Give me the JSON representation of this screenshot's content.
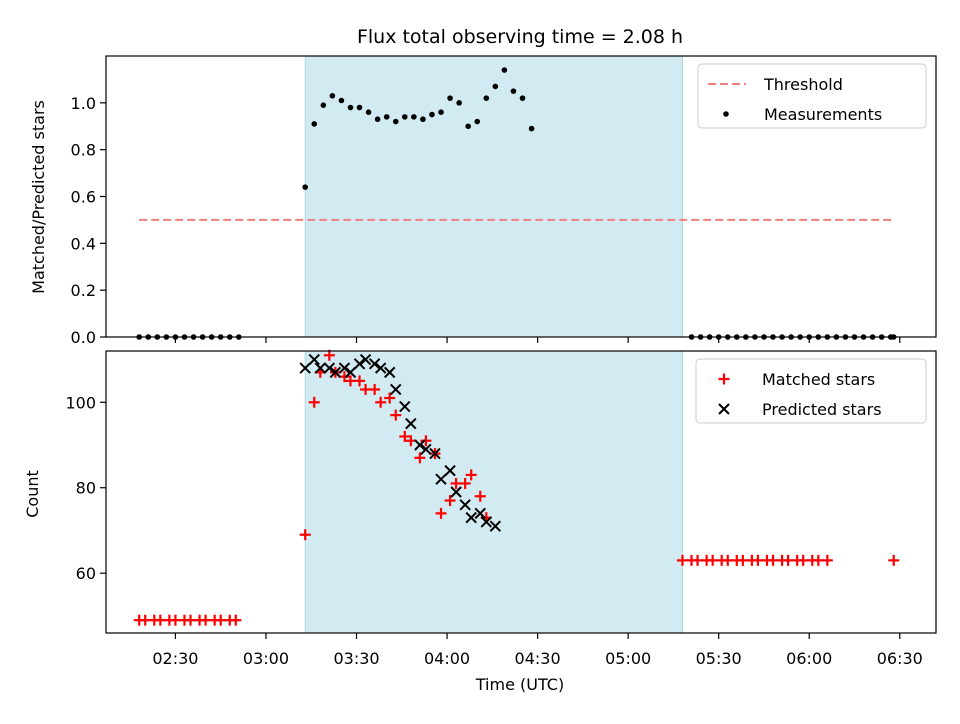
{
  "chart_data": {
    "type": "scatter",
    "title": "Flux total observing time = 2.08 h",
    "xlabel": "Time (UTC)",
    "x_ticks": [
      "02:30",
      "03:00",
      "03:30",
      "04:00",
      "04:30",
      "05:00",
      "05:30",
      "06:00",
      "06:30"
    ],
    "shaded_interval": [
      "03:13",
      "05:18"
    ],
    "shade_color": "#add8e6",
    "panels": [
      {
        "ylabel": "Matched/Predicted stars",
        "ylim": [
          0,
          1.2
        ],
        "y_ticks": [
          "0.0",
          "0.2",
          "0.4",
          "0.6",
          "0.8",
          "1.0"
        ],
        "legend": {
          "placement": "top-right",
          "entries": [
            "Threshold",
            "Measurements"
          ]
        },
        "threshold": {
          "name": "Threshold",
          "value": 0.5,
          "x_range": [
            "02:18",
            "06:28"
          ],
          "color": "#f08080"
        },
        "series": [
          {
            "name": "Measurements",
            "marker": "dot",
            "color": "#000000",
            "points": [
              [
                "02:18",
                0
              ],
              [
                "02:21",
                0
              ],
              [
                "02:24",
                0
              ],
              [
                "02:27",
                0
              ],
              [
                "02:30",
                0
              ],
              [
                "02:33",
                0
              ],
              [
                "02:36",
                0
              ],
              [
                "02:39",
                0
              ],
              [
                "02:42",
                0
              ],
              [
                "02:45",
                0
              ],
              [
                "02:48",
                0
              ],
              [
                "02:51",
                0
              ],
              [
                "03:13",
                0.64
              ],
              [
                "03:16",
                0.91
              ],
              [
                "03:19",
                0.99
              ],
              [
                "03:22",
                1.03
              ],
              [
                "03:25",
                1.01
              ],
              [
                "03:28",
                0.98
              ],
              [
                "03:31",
                0.98
              ],
              [
                "03:34",
                0.96
              ],
              [
                "03:37",
                0.93
              ],
              [
                "03:40",
                0.94
              ],
              [
                "03:43",
                0.92
              ],
              [
                "03:46",
                0.94
              ],
              [
                "03:49",
                0.94
              ],
              [
                "03:52",
                0.93
              ],
              [
                "03:55",
                0.95
              ],
              [
                "03:58",
                0.96
              ],
              [
                "04:01",
                1.02
              ],
              [
                "04:04",
                1.0
              ],
              [
                "04:07",
                0.9
              ],
              [
                "04:10",
                0.92
              ],
              [
                "04:13",
                1.02
              ],
              [
                "04:16",
                1.07
              ],
              [
                "04:19",
                1.14
              ],
              [
                "04:22",
                1.05
              ],
              [
                "04:25",
                1.02
              ],
              [
                "04:28",
                0.89
              ],
              [
                "05:21",
                0
              ],
              [
                "05:24",
                0
              ],
              [
                "05:27",
                0
              ],
              [
                "05:30",
                0
              ],
              [
                "05:33",
                0
              ],
              [
                "05:36",
                0
              ],
              [
                "05:39",
                0
              ],
              [
                "05:42",
                0
              ],
              [
                "05:45",
                0
              ],
              [
                "05:48",
                0
              ],
              [
                "05:51",
                0
              ],
              [
                "05:54",
                0
              ],
              [
                "05:57",
                0
              ],
              [
                "06:00",
                0
              ],
              [
                "06:03",
                0
              ],
              [
                "06:06",
                0
              ],
              [
                "06:09",
                0
              ],
              [
                "06:12",
                0
              ],
              [
                "06:15",
                0
              ],
              [
                "06:18",
                0
              ],
              [
                "06:21",
                0
              ],
              [
                "06:24",
                0
              ],
              [
                "06:27",
                0
              ],
              [
                "06:28",
                0
              ]
            ]
          }
        ]
      },
      {
        "ylabel": "Count",
        "ylim": [
          46,
          112
        ],
        "y_ticks": [
          "60",
          "80",
          "100"
        ],
        "legend": {
          "placement": "top-right",
          "entries": [
            "Matched stars",
            "Predicted stars"
          ]
        },
        "series": [
          {
            "name": "Matched stars",
            "marker": "plus",
            "color": "#ff0000",
            "points": [
              [
                "02:18",
                49
              ],
              [
                "02:20",
                49
              ],
              [
                "02:23",
                49
              ],
              [
                "02:25",
                49
              ],
              [
                "02:28",
                49
              ],
              [
                "02:30",
                49
              ],
              [
                "02:33",
                49
              ],
              [
                "02:35",
                49
              ],
              [
                "02:38",
                49
              ],
              [
                "02:40",
                49
              ],
              [
                "02:43",
                49
              ],
              [
                "02:45",
                49
              ],
              [
                "02:48",
                49
              ],
              [
                "02:50",
                49
              ],
              [
                "03:13",
                69
              ],
              [
                "03:16",
                100
              ],
              [
                "03:18",
                107
              ],
              [
                "03:21",
                111
              ],
              [
                "03:23",
                107
              ],
              [
                "03:26",
                106
              ],
              [
                "03:28",
                105
              ],
              [
                "03:31",
                105
              ],
              [
                "03:33",
                103
              ],
              [
                "03:36",
                103
              ],
              [
                "03:38",
                100
              ],
              [
                "03:41",
                101
              ],
              [
                "03:43",
                97
              ],
              [
                "03:46",
                92
              ],
              [
                "03:48",
                91
              ],
              [
                "03:51",
                87
              ],
              [
                "03:53",
                91
              ],
              [
                "03:56",
                88
              ],
              [
                "03:58",
                74
              ],
              [
                "04:01",
                77
              ],
              [
                "04:03",
                81
              ],
              [
                "04:06",
                81
              ],
              [
                "04:08",
                83
              ],
              [
                "04:11",
                78
              ],
              [
                "04:13",
                73
              ],
              [
                "05:18",
                63
              ],
              [
                "05:21",
                63
              ],
              [
                "05:23",
                63
              ],
              [
                "05:26",
                63
              ],
              [
                "05:28",
                63
              ],
              [
                "05:31",
                63
              ],
              [
                "05:33",
                63
              ],
              [
                "05:36",
                63
              ],
              [
                "05:38",
                63
              ],
              [
                "05:41",
                63
              ],
              [
                "05:43",
                63
              ],
              [
                "05:46",
                63
              ],
              [
                "05:48",
                63
              ],
              [
                "05:51",
                63
              ],
              [
                "05:53",
                63
              ],
              [
                "05:56",
                63
              ],
              [
                "05:58",
                63
              ],
              [
                "06:01",
                63
              ],
              [
                "06:03",
                63
              ],
              [
                "06:06",
                63
              ],
              [
                "06:28",
                63
              ]
            ]
          },
          {
            "name": "Predicted stars",
            "marker": "x",
            "color": "#000000",
            "points": [
              [
                "03:13",
                108
              ],
              [
                "03:16",
                110
              ],
              [
                "03:18",
                108
              ],
              [
                "03:21",
                108
              ],
              [
                "03:23",
                107
              ],
              [
                "03:26",
                108
              ],
              [
                "03:28",
                107
              ],
              [
                "03:31",
                109
              ],
              [
                "03:33",
                110
              ],
              [
                "03:36",
                109
              ],
              [
                "03:38",
                108
              ],
              [
                "03:41",
                107
              ],
              [
                "03:43",
                103
              ],
              [
                "03:46",
                99
              ],
              [
                "03:48",
                95
              ],
              [
                "03:51",
                90
              ],
              [
                "03:53",
                89
              ],
              [
                "03:56",
                88
              ],
              [
                "03:58",
                82
              ],
              [
                "04:01",
                84
              ],
              [
                "04:03",
                79
              ],
              [
                "04:06",
                76
              ],
              [
                "04:08",
                73
              ],
              [
                "04:11",
                74
              ],
              [
                "04:13",
                72
              ],
              [
                "04:16",
                71
              ]
            ]
          }
        ]
      }
    ]
  }
}
